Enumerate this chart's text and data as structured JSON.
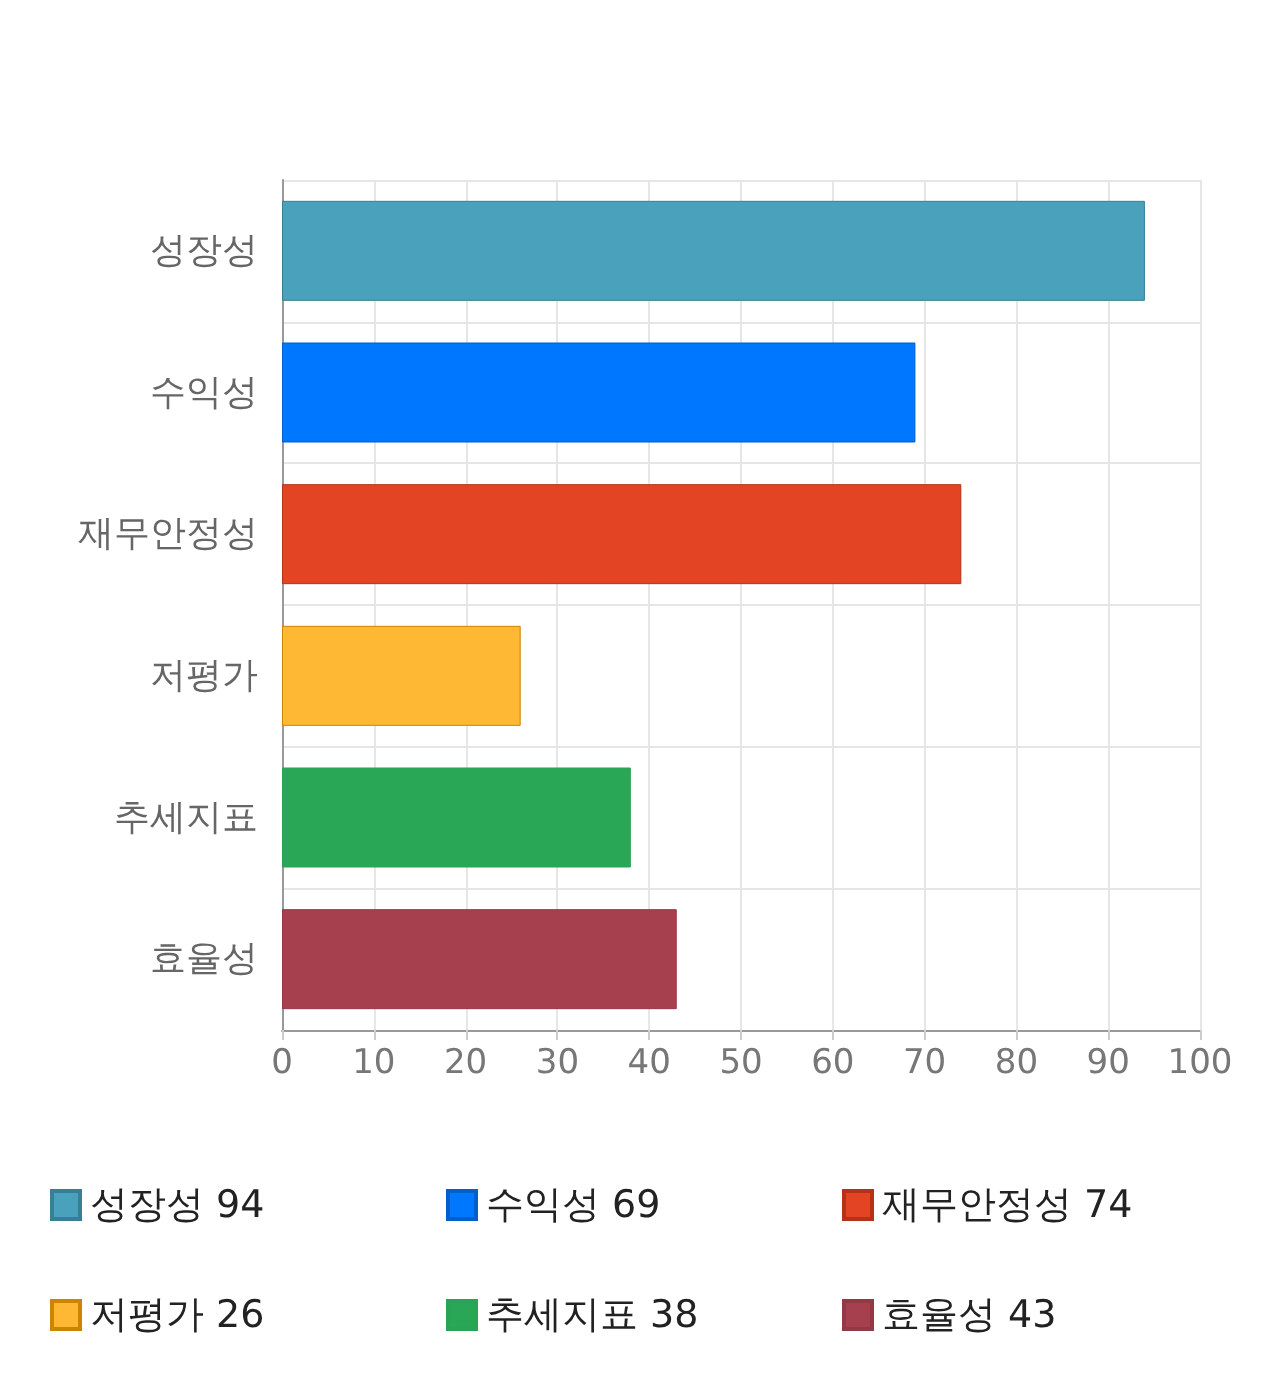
{
  "chart_data": {
    "type": "bar",
    "orientation": "horizontal",
    "categories": [
      "성장성",
      "수익성",
      "재무안정성",
      "저평가",
      "추세지표",
      "효율성"
    ],
    "series": [
      {
        "name": "성장성 94",
        "color": "#4aa1bb",
        "values": [
          94,
          null,
          null,
          null,
          null,
          null
        ]
      },
      {
        "name": "수익성 69",
        "color": "#0077ff",
        "values": [
          null,
          69,
          null,
          null,
          null,
          null
        ]
      },
      {
        "name": "재무안정성 74",
        "color": "#e24424",
        "values": [
          null,
          null,
          74,
          null,
          null,
          null
        ]
      },
      {
        "name": "저평가 26",
        "color": "#ffb833",
        "values": [
          null,
          null,
          null,
          26,
          null,
          null
        ]
      },
      {
        "name": "추세지표 38",
        "color": "#2aa657",
        "values": [
          null,
          null,
          null,
          null,
          38,
          null
        ]
      },
      {
        "name": "효율성 43",
        "color": "#a6404f",
        "values": [
          null,
          null,
          null,
          null,
          null,
          43
        ]
      }
    ],
    "xlim": [
      0,
      100
    ],
    "xticks": [
      0,
      10,
      20,
      30,
      40,
      50,
      60,
      70,
      80,
      90,
      100
    ],
    "grid": true,
    "legend": "bottom"
  }
}
